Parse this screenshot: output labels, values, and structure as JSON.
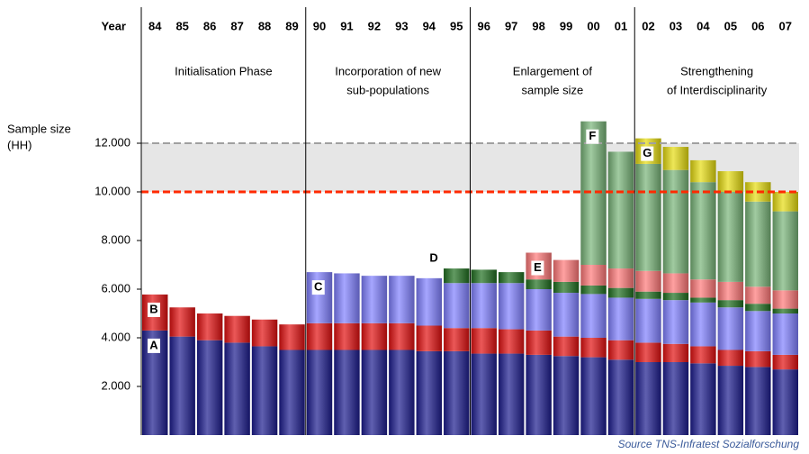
{
  "chart_data": {
    "type": "stacked_bar",
    "x_label": "Year",
    "y_label": [
      "Sample size",
      "(HH)"
    ],
    "source": "Source TNS-Infratest Sozialforschung",
    "categories": [
      "84",
      "85",
      "86",
      "87",
      "88",
      "89",
      "90",
      "91",
      "92",
      "93",
      "94",
      "95",
      "96",
      "97",
      "98",
      "99",
      "00",
      "01",
      "02",
      "03",
      "04",
      "05",
      "06",
      "07"
    ],
    "phases": [
      {
        "lines": [
          "Initialisation Phase"
        ]
      },
      {
        "lines": [
          "Incorporation of new",
          "sub-populations"
        ]
      },
      {
        "lines": [
          "Enlargement of",
          "sample size"
        ]
      },
      {
        "lines": [
          "Strengthening",
          "of Interdisciplinarity"
        ]
      }
    ],
    "series": [
      {
        "name": "A",
        "color": "#1c1c8e",
        "values": [
          4300,
          4050,
          3900,
          3800,
          3650,
          3500,
          3500,
          3500,
          3500,
          3500,
          3450,
          3450,
          3350,
          3350,
          3300,
          3250,
          3200,
          3100,
          3000,
          3000,
          2950,
          2850,
          2800,
          2700
        ]
      },
      {
        "name": "B",
        "color": "#e21010",
        "values": [
          1480,
          1200,
          1100,
          1100,
          1100,
          1050,
          1100,
          1100,
          1100,
          1100,
          1050,
          950,
          1050,
          1000,
          1000,
          800,
          800,
          800,
          800,
          750,
          700,
          650,
          650,
          600
        ]
      },
      {
        "name": "C",
        "color": "#8080ff",
        "values": [
          null,
          null,
          null,
          null,
          null,
          null,
          2100,
          2050,
          1950,
          1950,
          1950,
          1850,
          1850,
          1900,
          1700,
          1800,
          1800,
          1750,
          1800,
          1800,
          1800,
          1750,
          1650,
          1700
        ]
      },
      {
        "name": "D",
        "color": "#1f6e1f",
        "values": [
          null,
          null,
          null,
          null,
          null,
          null,
          null,
          null,
          null,
          null,
          null,
          600,
          550,
          450,
          400,
          450,
          350,
          400,
          300,
          300,
          200,
          300,
          300,
          200
        ]
      },
      {
        "name": "E",
        "color": "#ff7878",
        "values": [
          null,
          null,
          null,
          null,
          null,
          null,
          null,
          null,
          null,
          null,
          null,
          null,
          null,
          null,
          1100,
          900,
          850,
          800,
          850,
          800,
          750,
          750,
          700,
          750
        ]
      },
      {
        "name": "F",
        "color": "#78b478",
        "values": [
          null,
          null,
          null,
          null,
          null,
          null,
          null,
          null,
          null,
          null,
          null,
          null,
          null,
          null,
          null,
          null,
          5900,
          4800,
          4400,
          4250,
          4000,
          3700,
          3500,
          3250
        ]
      },
      {
        "name": "G",
        "color": "#e6dc10",
        "values": [
          null,
          null,
          null,
          null,
          null,
          null,
          null,
          null,
          null,
          null,
          null,
          null,
          null,
          null,
          null,
          null,
          null,
          null,
          1050,
          950,
          900,
          850,
          800,
          800
        ]
      }
    ],
    "ylim": [
      0,
      14000
    ],
    "yticks": [
      {
        "value": 2000,
        "label": "2.000"
      },
      {
        "value": 4000,
        "label": "4.000"
      },
      {
        "value": 6000,
        "label": "6.000"
      },
      {
        "value": 8000,
        "label": "8.000"
      },
      {
        "value": 10000,
        "label": "10.000"
      },
      {
        "value": 12000,
        "label": "12.000"
      }
    ],
    "reference_band": {
      "range": [
        10000,
        12000
      ],
      "color": "#e6e6e6"
    },
    "reference_lines": [
      {
        "value": 12000,
        "color": "#a0a0a0"
      },
      {
        "value": 10000,
        "color": "#ff2a00"
      }
    ]
  }
}
